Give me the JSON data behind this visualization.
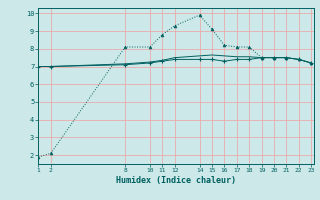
{
  "title": "",
  "xlabel": "Humidex (Indice chaleur)",
  "ylabel": "",
  "bg_color": "#cce8e8",
  "grid_color": "#f0a0a0",
  "line_color": "#006060",
  "ylim": [
    1.5,
    10.3
  ],
  "xlim": [
    1,
    23.2
  ],
  "yticks": [
    2,
    3,
    4,
    5,
    6,
    7,
    8,
    9,
    10
  ],
  "xticks": [
    1,
    2,
    8,
    10,
    11,
    12,
    14,
    15,
    16,
    17,
    18,
    19,
    20,
    21,
    22,
    23
  ],
  "line1_x": [
    1,
    2,
    8,
    10,
    11,
    12,
    14,
    15,
    16,
    17,
    18,
    19,
    20,
    21,
    22,
    23
  ],
  "line1_y": [
    1.9,
    2.1,
    8.1,
    8.1,
    8.8,
    9.3,
    9.9,
    9.1,
    8.2,
    8.1,
    8.1,
    7.5,
    7.5,
    7.5,
    7.4,
    7.2
  ],
  "line2_x": [
    1,
    2,
    8,
    10,
    11,
    12,
    14,
    15,
    16,
    17,
    18,
    19,
    20,
    21,
    22,
    23
  ],
  "line2_y": [
    7.0,
    7.0,
    7.1,
    7.2,
    7.3,
    7.4,
    7.4,
    7.4,
    7.3,
    7.4,
    7.4,
    7.5,
    7.5,
    7.5,
    7.4,
    7.2
  ],
  "line3_x": [
    1,
    2,
    8,
    10,
    11,
    12,
    14,
    15,
    16,
    17,
    18,
    19,
    20,
    21,
    22,
    23
  ],
  "line3_y": [
    7.0,
    7.0,
    7.15,
    7.25,
    7.35,
    7.5,
    7.6,
    7.65,
    7.6,
    7.55,
    7.55,
    7.5,
    7.5,
    7.5,
    7.4,
    7.2
  ]
}
